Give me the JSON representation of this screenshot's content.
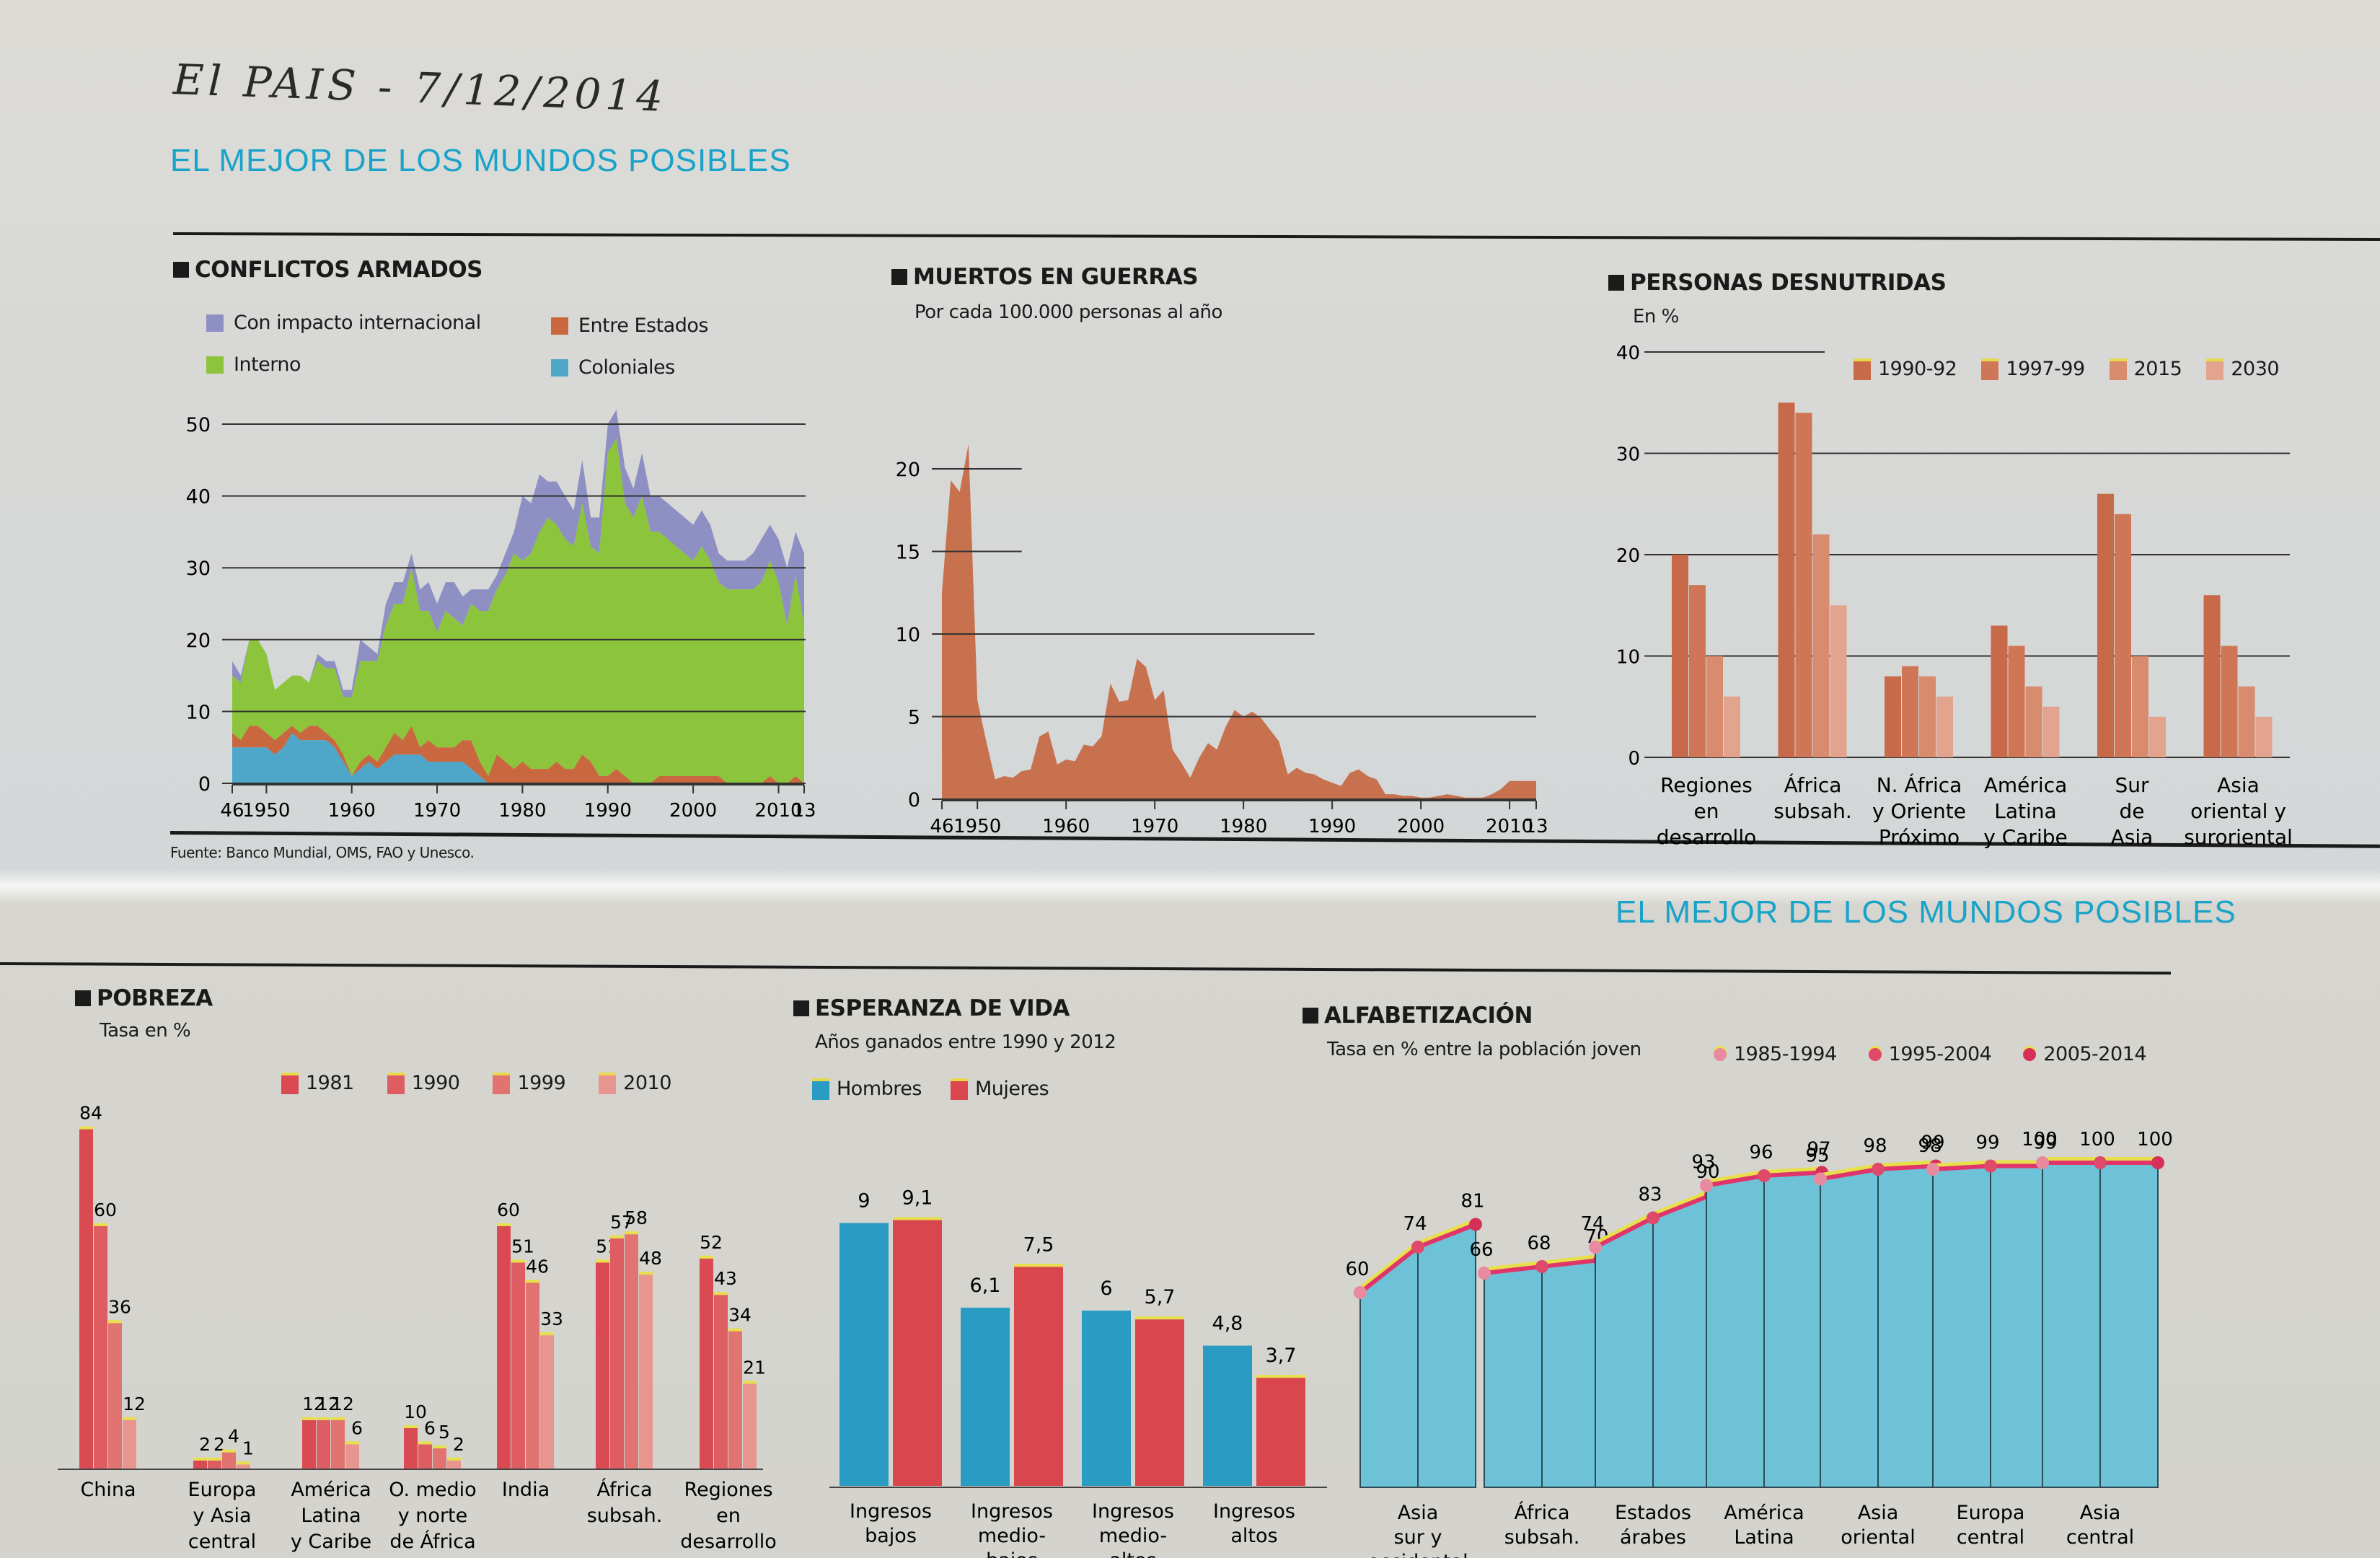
{
  "header": {
    "handwritten_note": "El PAIS - 7/12/2014",
    "kicker_top": "EL MEJOR DE LOS MUNDOS POSIBLES",
    "kicker_bottom": "EL MEJOR DE LOS MUNDOS POSIBLES"
  },
  "source_note": "Fuente: Banco Mundial, OMS, FAO y Unesco.",
  "colors": {
    "internacional": "#8e90c4",
    "interno": "#8cc43c",
    "entre_estados": "#c9683f",
    "coloniales": "#4ea6c8",
    "muertos": "#c8714f",
    "desn_1990": "#c8694a",
    "desn_1997": "#cf7656",
    "desn_2015": "#d98b6e",
    "desn_2030": "#e2a48e",
    "pob_1981": "#d94a52",
    "pob_1990": "#dd5d62",
    "pob_1999": "#e17370",
    "pob_2010": "#e8948f",
    "hombres": "#2a9cc4",
    "mujeres": "#d9464e",
    "alfa_bar": "#6ec2d8",
    "alfa_line": "#e0356a",
    "alfa_glow": "#e8e04a",
    "kicker": "#1aa3c9"
  },
  "chart_data": [
    {
      "id": "conflictos",
      "type": "area",
      "stacked": true,
      "title": "CONFLICTOS ARMADOS",
      "subtitle": "",
      "xlabel": "",
      "ylabel": "",
      "ylim": [
        0,
        50
      ],
      "yticks": [
        0,
        10,
        20,
        30,
        40,
        50
      ],
      "xlim": [
        1946,
        2013
      ],
      "xtick_labels": [
        {
          "x": 1946,
          "label": "46"
        },
        {
          "x": 1950,
          "label": "1950"
        },
        {
          "x": 1960,
          "label": "1960"
        },
        {
          "x": 1970,
          "label": "1970"
        },
        {
          "x": 1980,
          "label": "1980"
        },
        {
          "x": 1990,
          "label": "1990"
        },
        {
          "x": 2000,
          "label": "2000"
        },
        {
          "x": 2010,
          "label": "2010"
        },
        {
          "x": 2013,
          "label": "13"
        }
      ],
      "grid": true,
      "legend": [
        {
          "key": "internacional",
          "label": "Con impacto internacional"
        },
        {
          "key": "entre_estados",
          "label": "Entre Estados"
        },
        {
          "key": "interno",
          "label": "Interno"
        },
        {
          "key": "coloniales",
          "label": "Coloniales"
        }
      ],
      "x": [
        1946,
        1947,
        1948,
        1949,
        1950,
        1951,
        1952,
        1953,
        1954,
        1955,
        1956,
        1957,
        1958,
        1959,
        1960,
        1961,
        1962,
        1963,
        1964,
        1965,
        1966,
        1967,
        1968,
        1969,
        1970,
        1971,
        1972,
        1973,
        1974,
        1975,
        1976,
        1977,
        1978,
        1979,
        1980,
        1981,
        1982,
        1983,
        1984,
        1985,
        1986,
        1987,
        1988,
        1989,
        1990,
        1991,
        1992,
        1993,
        1994,
        1995,
        1996,
        1997,
        1998,
        1999,
        2000,
        2001,
        2002,
        2003,
        2004,
        2005,
        2006,
        2007,
        2008,
        2009,
        2010,
        2011,
        2012,
        2013
      ],
      "series": [
        {
          "name": "Coloniales",
          "key": "coloniales",
          "values": [
            5,
            5,
            5,
            5,
            5,
            4,
            5,
            7,
            6,
            6,
            6,
            6,
            5,
            3,
            1,
            2,
            3,
            2,
            3,
            4,
            4,
            4,
            4,
            3,
            3,
            3,
            3,
            3,
            2,
            1,
            0,
            0,
            0,
            0,
            0,
            0,
            0,
            0,
            0,
            0,
            0,
            0,
            0,
            0,
            0,
            0,
            0,
            0,
            0,
            0,
            0,
            0,
            0,
            0,
            0,
            0,
            0,
            0,
            0,
            0,
            0,
            0,
            0,
            0,
            0,
            0,
            0,
            0
          ]
        },
        {
          "name": "Entre Estados",
          "key": "entre_estados",
          "values": [
            2,
            1,
            3,
            3,
            2,
            2,
            2,
            1,
            1,
            2,
            2,
            1,
            1,
            1,
            0,
            1,
            1,
            1,
            2,
            3,
            2,
            4,
            1,
            3,
            2,
            2,
            2,
            3,
            4,
            2,
            1,
            4,
            3,
            2,
            3,
            2,
            2,
            2,
            3,
            2,
            2,
            4,
            3,
            1,
            1,
            2,
            1,
            0,
            0,
            0,
            1,
            1,
            1,
            1,
            1,
            1,
            1,
            1,
            0,
            0,
            0,
            0,
            0,
            1,
            0,
            0,
            1,
            0
          ]
        },
        {
          "name": "Interno",
          "key": "interno",
          "values": [
            8,
            8,
            12,
            12,
            11,
            7,
            7,
            7,
            8,
            6,
            9,
            9,
            10,
            8,
            11,
            14,
            13,
            14,
            17,
            18,
            19,
            22,
            19,
            18,
            16,
            19,
            18,
            16,
            19,
            21,
            23,
            23,
            26,
            30,
            28,
            30,
            33,
            35,
            33,
            32,
            31,
            35,
            30,
            31,
            45,
            46,
            38,
            37,
            40,
            35,
            34,
            33,
            32,
            31,
            30,
            32,
            30,
            27,
            27,
            27,
            27,
            27,
            28,
            30,
            28,
            22,
            28,
            22
          ]
        },
        {
          "name": "Con impacto internacional",
          "key": "internacional",
          "values": [
            2,
            1,
            0,
            0,
            0,
            0,
            0,
            0,
            0,
            0,
            1,
            1,
            1,
            1,
            1,
            3,
            2,
            1,
            3,
            3,
            3,
            2,
            3,
            4,
            4,
            4,
            5,
            4,
            2,
            3,
            3,
            2,
            3,
            3,
            9,
            7,
            8,
            5,
            6,
            6,
            5,
            6,
            4,
            5,
            4,
            4,
            5,
            4,
            6,
            5,
            5,
            5,
            5,
            5,
            5,
            5,
            5,
            4,
            4,
            4,
            4,
            5,
            6,
            5,
            6,
            8,
            6,
            10
          ]
        }
      ]
    },
    {
      "id": "muertos",
      "type": "area",
      "title": "MUERTOS EN GUERRAS",
      "subtitle": "Por cada 100.000 personas al año",
      "xlabel": "",
      "ylabel": "",
      "ylim": [
        0,
        20
      ],
      "yticks": [
        0,
        5,
        10,
        15,
        20
      ],
      "xlim": [
        1946,
        2013
      ],
      "xtick_labels": [
        {
          "x": 1946,
          "label": "46"
        },
        {
          "x": 1950,
          "label": "1950"
        },
        {
          "x": 1960,
          "label": "1960"
        },
        {
          "x": 1970,
          "label": "1970"
        },
        {
          "x": 1980,
          "label": "1980"
        },
        {
          "x": 1990,
          "label": "1990"
        },
        {
          "x": 2000,
          "label": "2000"
        },
        {
          "x": 2010,
          "label": "2010"
        },
        {
          "x": 2013,
          "label": "13"
        }
      ],
      "grid": true,
      "x": [
        1946,
        1947,
        1948,
        1949,
        1950,
        1951,
        1952,
        1953,
        1954,
        1955,
        1956,
        1957,
        1958,
        1959,
        1960,
        1961,
        1962,
        1963,
        1964,
        1965,
        1966,
        1967,
        1968,
        1969,
        1970,
        1971,
        1972,
        1973,
        1974,
        1975,
        1976,
        1977,
        1978,
        1979,
        1980,
        1981,
        1982,
        1983,
        1984,
        1985,
        1986,
        1987,
        1988,
        1989,
        1990,
        1991,
        1992,
        1993,
        1994,
        1995,
        1996,
        1997,
        1998,
        1999,
        2000,
        2001,
        2002,
        2003,
        2004,
        2005,
        2006,
        2007,
        2008,
        2009,
        2010,
        2011,
        2012,
        2013
      ],
      "series": [
        {
          "name": "Muertos",
          "key": "muertos",
          "values": [
            12.5,
            19.3,
            18.6,
            21.5,
            6,
            3.5,
            1.2,
            1.4,
            1.3,
            1.7,
            1.8,
            3.8,
            4.1,
            2.1,
            2.4,
            2.3,
            3.3,
            3.2,
            3.8,
            7.0,
            5.9,
            6.0,
            8.5,
            8.0,
            6.0,
            6.6,
            3.0,
            2.2,
            1.3,
            2.5,
            3.4,
            3.0,
            4.4,
            5.4,
            5.0,
            5.3,
            4.9,
            4.2,
            3.5,
            1.5,
            1.9,
            1.6,
            1.5,
            1.2,
            1.0,
            0.8,
            1.6,
            1.8,
            1.4,
            1.2,
            0.3,
            0.3,
            0.2,
            0.2,
            0.1,
            0.1,
            0.2,
            0.3,
            0.2,
            0.1,
            0.1,
            0.1,
            0.3,
            0.6,
            1.1,
            1.1,
            1.1,
            1.1
          ]
        }
      ]
    },
    {
      "id": "desnutridas",
      "type": "bar",
      "title": "PERSONAS DESNUTRIDAS",
      "subtitle": "En %",
      "xlabel": "",
      "ylabel": "",
      "ylim": [
        0,
        40
      ],
      "yticks": [
        0,
        10,
        20,
        30,
        40
      ],
      "grid": true,
      "legend_position": "top-right",
      "categories": [
        "Regiones en desarrollo",
        "África subsah.",
        "N. África y Oriente Próximo",
        "América Latina y Caribe",
        "Sur de Asia",
        "Asia oriental y suroriental"
      ],
      "category_lines": [
        [
          "Regiones",
          "en",
          "desarrollo"
        ],
        [
          "África",
          "subsah."
        ],
        [
          "N. África",
          "y Oriente",
          "Próximo"
        ],
        [
          "América",
          "Latina",
          "y Caribe"
        ],
        [
          "Sur",
          "de",
          "Asia"
        ],
        [
          "Asia",
          "oriental y",
          "suroriental"
        ]
      ],
      "series": [
        {
          "name": "1990-92",
          "key": "desn_1990",
          "values": [
            20,
            35,
            8,
            13,
            26,
            16
          ]
        },
        {
          "name": "1997-99",
          "key": "desn_1997",
          "values": [
            17,
            34,
            9,
            11,
            24,
            11
          ]
        },
        {
          "name": "2015",
          "key": "desn_2015",
          "values": [
            10,
            22,
            8,
            7,
            10,
            7
          ]
        },
        {
          "name": "2030",
          "key": "desn_2030",
          "values": [
            6,
            15,
            6,
            5,
            4,
            4
          ]
        }
      ]
    },
    {
      "id": "pobreza",
      "type": "bar",
      "title": "POBREZA",
      "subtitle": "Tasa en %",
      "xlabel": "",
      "ylabel": "",
      "ylim": [
        0,
        84
      ],
      "grid": false,
      "legend_position": "top",
      "categories": [
        "China",
        "Europa y Asia central",
        "América Latina y Caribe",
        "O. medio y norte de África",
        "India",
        "África subsah.",
        "Regiones en desarrollo"
      ],
      "category_lines": [
        [
          "China"
        ],
        [
          "Europa",
          "y Asia",
          "central"
        ],
        [
          "América",
          "Latina",
          "y Caribe"
        ],
        [
          "O. medio",
          "y norte",
          "de África"
        ],
        [
          "India"
        ],
        [
          "África",
          "subsah."
        ],
        [
          "Regiones",
          "en",
          "desarrollo"
        ]
      ],
      "series": [
        {
          "name": "1981",
          "key": "pob_1981",
          "values": [
            84,
            2,
            12,
            10,
            60,
            51,
            52
          ]
        },
        {
          "name": "1990",
          "key": "pob_1990",
          "values": [
            60,
            2,
            12,
            6,
            51,
            57,
            43
          ]
        },
        {
          "name": "1999",
          "key": "pob_1999",
          "values": [
            36,
            4,
            12,
            5,
            46,
            58,
            34
          ]
        },
        {
          "name": "2010",
          "key": "pob_2010",
          "values": [
            12,
            1,
            6,
            2,
            33,
            48,
            21
          ]
        }
      ]
    },
    {
      "id": "esperanza",
      "type": "bar",
      "title": "ESPERANZA DE VIDA",
      "subtitle": "Años ganados entre 1990 y 2012",
      "xlabel": "",
      "ylabel": "",
      "ylim": [
        0,
        9.1
      ],
      "grid": false,
      "legend_position": "top-left",
      "categories": [
        "Ingresos bajos",
        "Ingresos medio-bajos",
        "Ingresos medio-altos",
        "Ingresos altos"
      ],
      "category_lines": [
        [
          "Ingresos",
          "bajos"
        ],
        [
          "Ingresos",
          "medio-",
          "bajos"
        ],
        [
          "Ingresos",
          "medio-",
          "altos"
        ],
        [
          "Ingresos",
          "altos"
        ]
      ],
      "series": [
        {
          "name": "Hombres",
          "key": "hombres",
          "values": [
            9,
            6.1,
            6,
            4.8
          ],
          "labels": [
            "9",
            "6,1",
            "6",
            "4,8"
          ]
        },
        {
          "name": "Mujeres",
          "key": "mujeres",
          "values": [
            9.1,
            7.5,
            5.7,
            3.7
          ],
          "labels": [
            "9,1",
            "7,5",
            "5,7",
            "3,7"
          ]
        }
      ]
    },
    {
      "id": "alfabetizacion",
      "type": "bar",
      "title": "ALFABETIZACIÓN",
      "subtitle": "Tasa en % entre la población joven",
      "xlabel": "",
      "ylabel": "",
      "ylim": [
        0,
        100
      ],
      "grid": false,
      "legend_position": "top-right",
      "legend": [
        "1985-1994",
        "1995-2004",
        "2005-2014"
      ],
      "categories": [
        "Asia sur y occidental",
        "África subsah.",
        "Estados árabes",
        "América Latina",
        "Asia oriental",
        "Europa central",
        "Asia central"
      ],
      "category_lines": [
        [
          "Asia",
          "sur y",
          "occidental"
        ],
        [
          "África",
          "subsah."
        ],
        [
          "Estados",
          "árabes"
        ],
        [
          "América",
          "Latina"
        ],
        [
          "Asia",
          "oriental"
        ],
        [
          "Europa",
          "central"
        ],
        [
          "Asia",
          "central"
        ]
      ],
      "periods": [
        "1985-1994",
        "1995-2004",
        "2005-2014"
      ],
      "values": [
        [
          60,
          74,
          81
        ],
        [
          66,
          68,
          70
        ],
        [
          74,
          83,
          90
        ],
        [
          93,
          96,
          97
        ],
        [
          95,
          98,
          99
        ],
        [
          98,
          99,
          99
        ],
        [
          100,
          100,
          100
        ]
      ]
    }
  ]
}
